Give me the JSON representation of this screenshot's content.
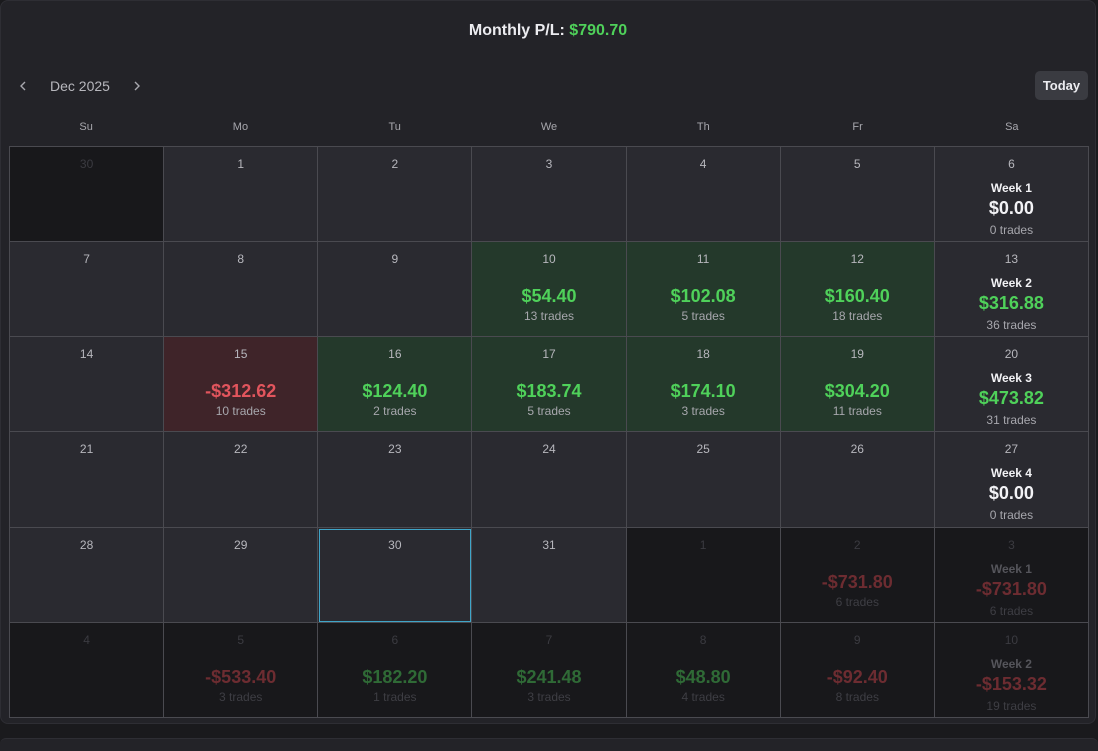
{
  "header": {
    "label": "Monthly P/L:",
    "value": "$790.70"
  },
  "nav": {
    "month": "Dec 2025",
    "today": "Today"
  },
  "weekdays": [
    "Su",
    "Mo",
    "Tu",
    "We",
    "Th",
    "Fr",
    "Sa"
  ],
  "colors": {
    "positive": "#4fd15a",
    "negative": "#e2555d",
    "today_outline": "#3fa5c8"
  },
  "weeks": [
    [
      {
        "day": "30",
        "outside": true
      },
      {
        "day": "1"
      },
      {
        "day": "2"
      },
      {
        "day": "3"
      },
      {
        "day": "4"
      },
      {
        "day": "5"
      },
      {
        "day": "6",
        "week": "Week 1",
        "week_pl": "$0.00",
        "week_trades": "0 trades",
        "week_status": "zero"
      }
    ],
    [
      {
        "day": "7"
      },
      {
        "day": "8"
      },
      {
        "day": "9"
      },
      {
        "day": "10",
        "pl": "$54.40",
        "trades": "13 trades",
        "status": "pos"
      },
      {
        "day": "11",
        "pl": "$102.08",
        "trades": "5 trades",
        "status": "pos"
      },
      {
        "day": "12",
        "pl": "$160.40",
        "trades": "18 trades",
        "status": "pos"
      },
      {
        "day": "13",
        "week": "Week 2",
        "week_pl": "$316.88",
        "week_trades": "36 trades",
        "week_status": "pos"
      }
    ],
    [
      {
        "day": "14"
      },
      {
        "day": "15",
        "pl": "-$312.62",
        "trades": "10 trades",
        "status": "neg"
      },
      {
        "day": "16",
        "pl": "$124.40",
        "trades": "2 trades",
        "status": "pos"
      },
      {
        "day": "17",
        "pl": "$183.74",
        "trades": "5 trades",
        "status": "pos"
      },
      {
        "day": "18",
        "pl": "$174.10",
        "trades": "3 trades",
        "status": "pos"
      },
      {
        "day": "19",
        "pl": "$304.20",
        "trades": "11 trades",
        "status": "pos"
      },
      {
        "day": "20",
        "week": "Week 3",
        "week_pl": "$473.82",
        "week_trades": "31 trades",
        "week_status": "pos"
      }
    ],
    [
      {
        "day": "21"
      },
      {
        "day": "22"
      },
      {
        "day": "23"
      },
      {
        "day": "24"
      },
      {
        "day": "25"
      },
      {
        "day": "26"
      },
      {
        "day": "27",
        "week": "Week 4",
        "week_pl": "$0.00",
        "week_trades": "0 trades",
        "week_status": "zero"
      }
    ],
    [
      {
        "day": "28"
      },
      {
        "day": "29"
      },
      {
        "day": "30",
        "today": true
      },
      {
        "day": "31"
      },
      {
        "day": "1",
        "outside": true
      },
      {
        "day": "2",
        "outside": true,
        "pl": "-$731.80",
        "trades": "6 trades",
        "status": "neg"
      },
      {
        "day": "3",
        "outside": true,
        "week": "Week 1",
        "week_pl": "-$731.80",
        "week_trades": "6 trades",
        "week_status": "neg"
      }
    ],
    [
      {
        "day": "4",
        "outside": true
      },
      {
        "day": "5",
        "outside": true,
        "pl": "-$533.40",
        "trades": "3 trades",
        "status": "neg"
      },
      {
        "day": "6",
        "outside": true,
        "pl": "$182.20",
        "trades": "1 trades",
        "status": "pos"
      },
      {
        "day": "7",
        "outside": true,
        "pl": "$241.48",
        "trades": "3 trades",
        "status": "pos"
      },
      {
        "day": "8",
        "outside": true,
        "pl": "$48.80",
        "trades": "4 trades",
        "status": "pos"
      },
      {
        "day": "9",
        "outside": true,
        "pl": "-$92.40",
        "trades": "8 trades",
        "status": "neg"
      },
      {
        "day": "10",
        "outside": true,
        "week": "Week 2",
        "week_pl": "-$153.32",
        "week_trades": "19 trades",
        "week_status": "neg"
      }
    ]
  ]
}
